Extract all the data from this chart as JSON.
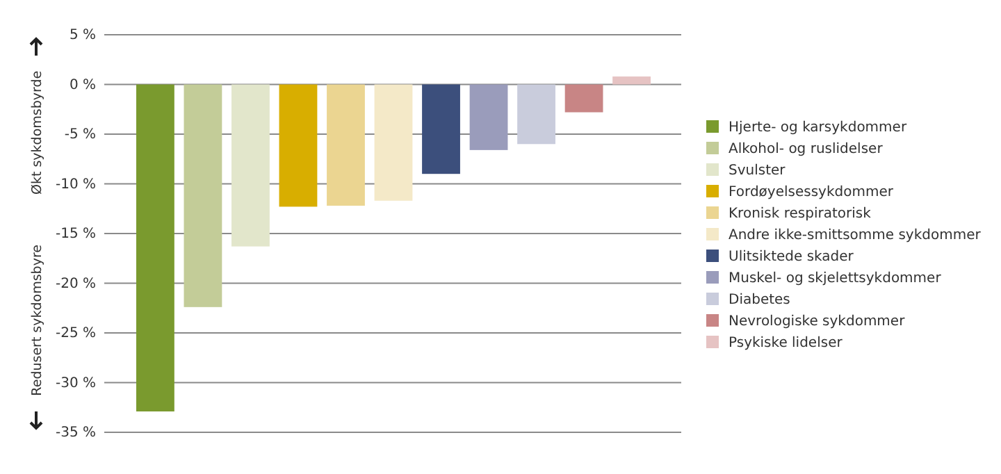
{
  "chart_data": {
    "type": "bar",
    "categories": [
      null,
      null,
      null,
      null,
      null,
      null,
      null,
      null,
      null,
      null,
      null
    ],
    "series": [
      {
        "name": "Hjerte- og karsykdommer",
        "color": "#7a9a2e",
        "values": [
          -32.9,
          null,
          null,
          null,
          null,
          null,
          null,
          null,
          null,
          null,
          null
        ]
      },
      {
        "name": "Alkohol- og ruslidelser",
        "color": "#c3cc98",
        "values": [
          null,
          -22.4,
          null,
          null,
          null,
          null,
          null,
          null,
          null,
          null,
          null
        ]
      },
      {
        "name": "Svulster",
        "color": "#e2e6cb",
        "values": [
          null,
          null,
          -16.3,
          null,
          null,
          null,
          null,
          null,
          null,
          null,
          null
        ]
      },
      {
        "name": "Fordøyelsessykdommer",
        "color": "#d8ae00",
        "values": [
          null,
          null,
          null,
          -12.3,
          null,
          null,
          null,
          null,
          null,
          null,
          null
        ]
      },
      {
        "name": "Kronisk respiratorisk",
        "color": "#ebd591",
        "values": [
          null,
          null,
          null,
          null,
          -12.2,
          null,
          null,
          null,
          null,
          null,
          null
        ]
      },
      {
        "name": "Andre ikke-smittsomme sykdommer",
        "color": "#f4e9c8",
        "values": [
          null,
          null,
          null,
          null,
          null,
          -11.7,
          null,
          null,
          null,
          null,
          null
        ]
      },
      {
        "name": "Ulitsiktede skader",
        "color": "#3c4f7c",
        "values": [
          null,
          null,
          null,
          null,
          null,
          null,
          -9.0,
          null,
          null,
          null,
          null
        ]
      },
      {
        "name": "Muskel- og skjelettsykdommer",
        "color": "#9a9cbb",
        "values": [
          null,
          null,
          null,
          null,
          null,
          null,
          null,
          -6.6,
          null,
          null,
          null
        ]
      },
      {
        "name": "Diabetes",
        "color": "#c9ccdc",
        "values": [
          null,
          null,
          null,
          null,
          null,
          null,
          null,
          null,
          -6.0,
          null,
          null
        ]
      },
      {
        "name": "Nevrologiske sykdommer",
        "color": "#c88585",
        "values": [
          null,
          null,
          null,
          null,
          null,
          null,
          null,
          null,
          null,
          -2.8,
          null
        ]
      },
      {
        "name": "Psykiske lidelser",
        "color": "#e6c3c3",
        "values": [
          null,
          null,
          null,
          null,
          null,
          null,
          null,
          null,
          null,
          null,
          0.8
        ]
      }
    ],
    "ylim": [
      -35,
      5
    ],
    "yticks": [
      {
        "value": 5,
        "label": "5 %"
      },
      {
        "value": 0,
        "label": "0 %"
      },
      {
        "value": -5,
        "label": "-5 %"
      },
      {
        "value": -10,
        "label": "-10 %"
      },
      {
        "value": -15,
        "label": "-15 %"
      },
      {
        "value": -20,
        "label": "-20 %"
      },
      {
        "value": -25,
        "label": "-25 %"
      },
      {
        "value": -30,
        "label": "-30 %"
      },
      {
        "value": -35,
        "label": "-35 %"
      }
    ],
    "grid": "y",
    "legend": "right",
    "annotations": [
      "Økt sykdomsbyrde",
      "Redusert sykdomsbyre"
    ]
  }
}
